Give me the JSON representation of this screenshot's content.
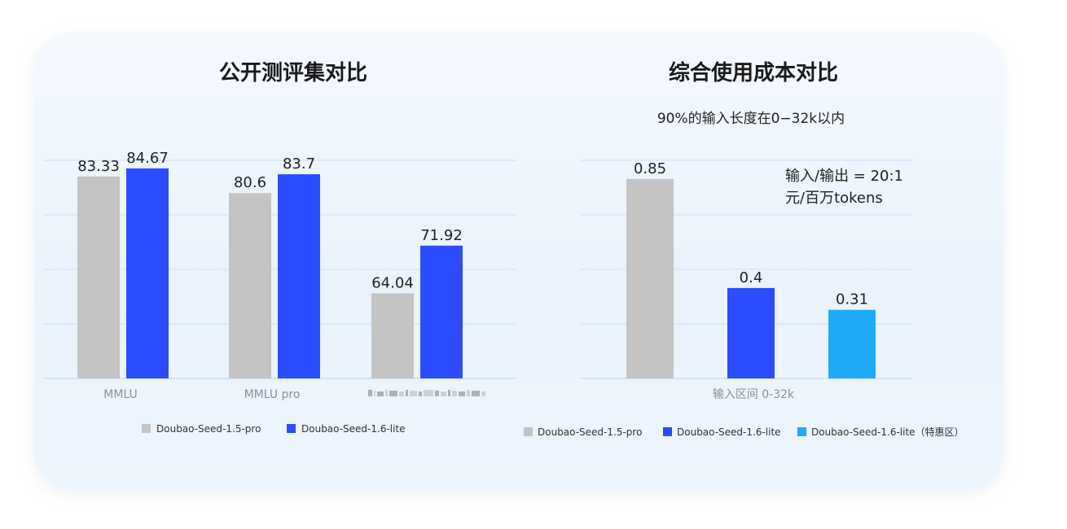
{
  "colors": {
    "pro": "#c4c4c4",
    "lite": "#2b4cff",
    "lite_discount": "#1faaf7"
  },
  "chart_data": [
    {
      "type": "bar",
      "title": "公开测评集对比",
      "categories": [
        "MMLU",
        "MMLU pro",
        ""
      ],
      "series": [
        {
          "name": "Doubao-Seed-1.5-pro",
          "values": [
            83.33,
            80.6,
            64.04
          ],
          "color": "#c4c4c4"
        },
        {
          "name": "Doubao-Seed-1.6-lite",
          "values": [
            84.67,
            83.7,
            71.92
          ],
          "color": "#2b4cff"
        }
      ],
      "ylim": [
        50,
        86
      ],
      "grid": true,
      "legend": "bottom"
    },
    {
      "type": "bar",
      "title": "综合使用成本对比",
      "subtitle": "90%的输入长度在0−32k以内",
      "annotations": [
        "输入/输出 = 20:1",
        "元/百万tokens"
      ],
      "categories": [
        "输入区间 0-32k"
      ],
      "series": [
        {
          "name": "Doubao-Seed-1.5-pro",
          "values": [
            0.85
          ],
          "color": "#c4c4c4"
        },
        {
          "name": "Doubao-Seed-1.6-lite",
          "values": [
            0.4
          ],
          "color": "#2b4cff"
        },
        {
          "name": "Doubao-Seed-1.6-lite（特惠区）",
          "values": [
            0.31
          ],
          "color": "#1faaf7"
        }
      ],
      "ylim": [
        0,
        0.9
      ],
      "grid": true,
      "legend": "bottom"
    }
  ]
}
